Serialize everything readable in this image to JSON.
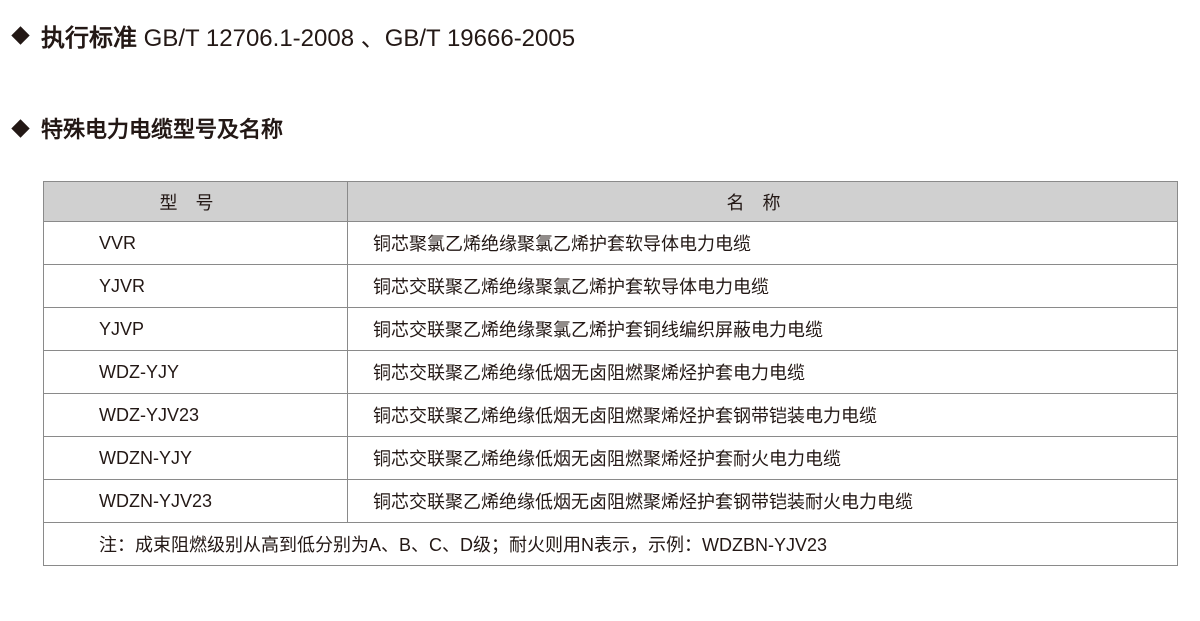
{
  "standard_heading": {
    "label": "执行标准",
    "value": "GB/T 12706.1-2008 、GB/T 19666-2005"
  },
  "section_heading": "特殊电力电缆型号及名称",
  "table": {
    "headers": [
      "型号",
      "名称"
    ],
    "rows": [
      {
        "model": "VVR",
        "name": "铜芯聚氯乙烯绝缘聚氯乙烯护套软导体电力电缆"
      },
      {
        "model": "YJVR",
        "name": "铜芯交联聚乙烯绝缘聚氯乙烯护套软导体电力电缆"
      },
      {
        "model": "YJVP",
        "name": "铜芯交联聚乙烯绝缘聚氯乙烯护套铜线编织屏蔽电力电缆"
      },
      {
        "model": "WDZ-YJY",
        "name": "铜芯交联聚乙烯绝缘低烟无卤阻燃聚烯烃护套电力电缆"
      },
      {
        "model": "WDZ-YJV23",
        "name": "铜芯交联聚乙烯绝缘低烟无卤阻燃聚烯烃护套钢带铠装电力电缆"
      },
      {
        "model": "WDZN-YJY",
        "name": "铜芯交联聚乙烯绝缘低烟无卤阻燃聚烯烃护套耐火电力电缆"
      },
      {
        "model": "WDZN-YJV23",
        "name": "铜芯交联聚乙烯绝缘低烟无卤阻燃聚烯烃护套钢带铠装耐火电力电缆"
      }
    ],
    "note": "注：成束阻燃级别从高到低分别为A、B、C、D级；耐火则用N表示，示例：WDZBN-YJV23"
  },
  "colors": {
    "text": "#231815",
    "header_bg": "#d0d0d0",
    "border": "#8a8a8a"
  }
}
